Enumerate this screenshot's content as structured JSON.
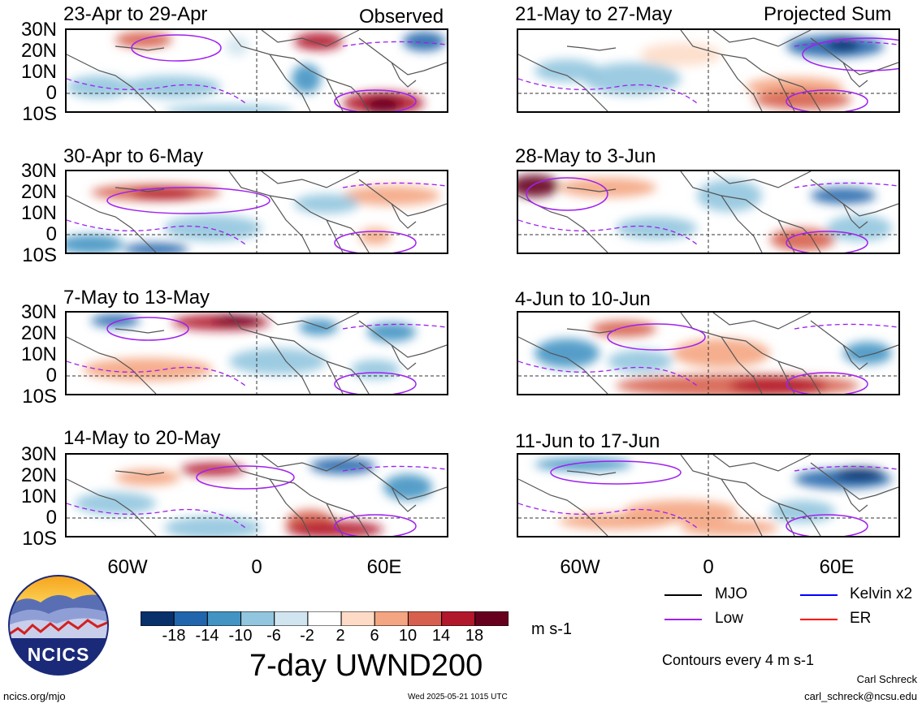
{
  "panels": [
    {
      "title": "23-Apr to 29-Apr",
      "tag": "Observed"
    },
    {
      "title": "30-Apr to 6-May",
      "tag": ""
    },
    {
      "title": "7-May to 13-May",
      "tag": ""
    },
    {
      "title": "14-May to 20-May",
      "tag": ""
    },
    {
      "title": "21-May to 27-May",
      "tag": "Projected Sum"
    },
    {
      "title": "28-May to 3-Jun",
      "tag": ""
    },
    {
      "title": "4-Jun to 10-Jun",
      "tag": ""
    },
    {
      "title": "11-Jun to 17-Jun",
      "tag": ""
    }
  ],
  "latitude_labels": [
    "30N",
    "20N",
    "10N",
    "0",
    "10S"
  ],
  "longitude_labels": [
    "60W",
    "0",
    "60E"
  ],
  "colorbar": {
    "colors": [
      "#08306b",
      "#2166ac",
      "#4393c3",
      "#92c5de",
      "#d1e5f0",
      "#ffffff",
      "#fddbc7",
      "#f4a582",
      "#d6604d",
      "#b2182b",
      "#67001f"
    ],
    "tick_labels": [
      "-18",
      "-14",
      "-10",
      "-6",
      "-2",
      "2",
      "6",
      "10",
      "14",
      "18"
    ],
    "units": "m s-1"
  },
  "main_title": "7-day UWND200",
  "legend": {
    "items": [
      {
        "label": "MJO",
        "color": "#000000"
      },
      {
        "label": "Kelvin x2",
        "color": "#0000ff"
      },
      {
        "label": "Low",
        "color": "#a020f0"
      },
      {
        "label": "ER",
        "color": "#ff0000"
      }
    ],
    "contour_note": "Contours every 4 m s-1"
  },
  "logo_text": "NCICS",
  "footer": {
    "left": "ncics.org/mjo",
    "center": "Wed 2025-05-21 1015 UTC",
    "author": "Carl Schreck",
    "email": "carl_schreck@ncsu.edu"
  },
  "colors": {
    "coast": "#555555",
    "contour": "#a020f0"
  }
}
